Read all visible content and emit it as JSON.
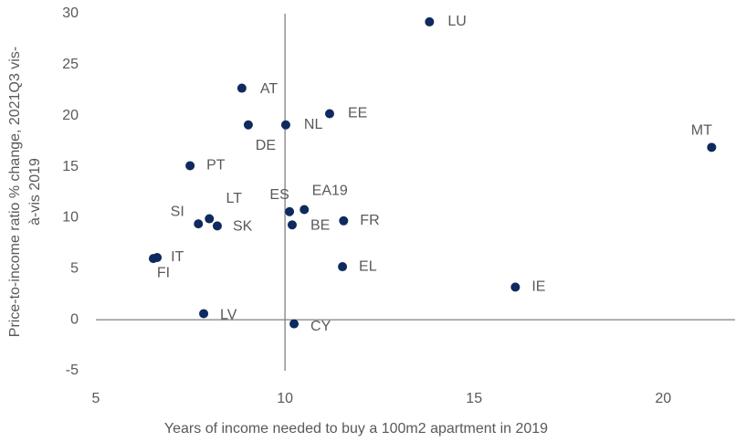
{
  "chart_data": {
    "type": "scatter",
    "x_label": "Years of income needed to buy a 100m2 apartment in 2019",
    "y_label": [
      "Price-to-income ratio % change, 2021Q3 vis-",
      "à-vis 2019"
    ],
    "color": "#0e2a5e",
    "labels": [
      "LU",
      "MT",
      "AT",
      "EE",
      "DE",
      "NL",
      "PT",
      "ES",
      "EA19",
      "LT",
      "SI",
      "SK",
      "BE",
      "FR",
      "IT",
      "FI",
      "EL",
      "IE",
      "LV",
      "CY"
    ],
    "x": [
      13.82,
      21.28,
      8.86,
      11.18,
      9.03,
      10.02,
      7.49,
      10.12,
      10.51,
      8.0,
      7.71,
      8.21,
      10.19,
      11.55,
      6.62,
      6.52,
      11.52,
      16.09,
      7.85,
      10.24
    ],
    "y": [
      29.2,
      16.9,
      22.7,
      20.2,
      19.1,
      19.1,
      15.1,
      10.6,
      10.8,
      9.9,
      9.4,
      9.2,
      9.3,
      9.7,
      6.1,
      6.0,
      5.2,
      3.2,
      0.6,
      -0.4
    ],
    "xlim": [
      5,
      21.9
    ],
    "ylim": [
      -5,
      30
    ],
    "xticks": [
      5,
      10,
      15,
      20
    ],
    "yticks": [
      -5,
      0,
      5,
      10,
      15,
      20,
      25,
      30
    ],
    "axis_cross": [
      10,
      0
    ]
  }
}
